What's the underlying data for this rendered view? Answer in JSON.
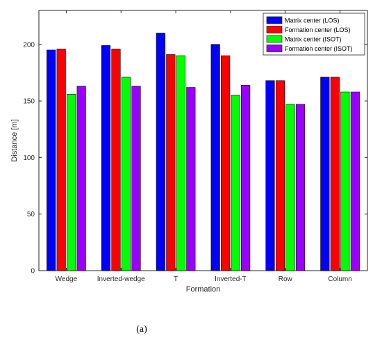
{
  "chart_data": {
    "type": "bar",
    "categories": [
      "Wedge",
      "Inverted-wedge",
      "T",
      "Inverted-T",
      "Row",
      "Column"
    ],
    "series": [
      {
        "name": "Matrix center (LOS)",
        "color": "#0000ff",
        "values": [
          195,
          199,
          210,
          200,
          168,
          171
        ]
      },
      {
        "name": "Formation center (LOS)",
        "color": "#ff0000",
        "values": [
          196,
          196,
          191,
          190,
          168,
          171
        ]
      },
      {
        "name": "Matrix center (ISOT)",
        "color": "#00ff00",
        "values": [
          156,
          171,
          190,
          155,
          147,
          158
        ]
      },
      {
        "name": "Formation center (ISOT)",
        "color": "#9900ff",
        "values": [
          163,
          163,
          162,
          164,
          147,
          158
        ]
      }
    ],
    "xlabel": "Formation",
    "ylabel": "Distance [m]",
    "ylim": [
      0,
      230
    ],
    "yticks": [
      "0",
      "50",
      "100",
      "150",
      "200"
    ],
    "grid": false,
    "legend_position": "top-right"
  },
  "caption": "(a)"
}
